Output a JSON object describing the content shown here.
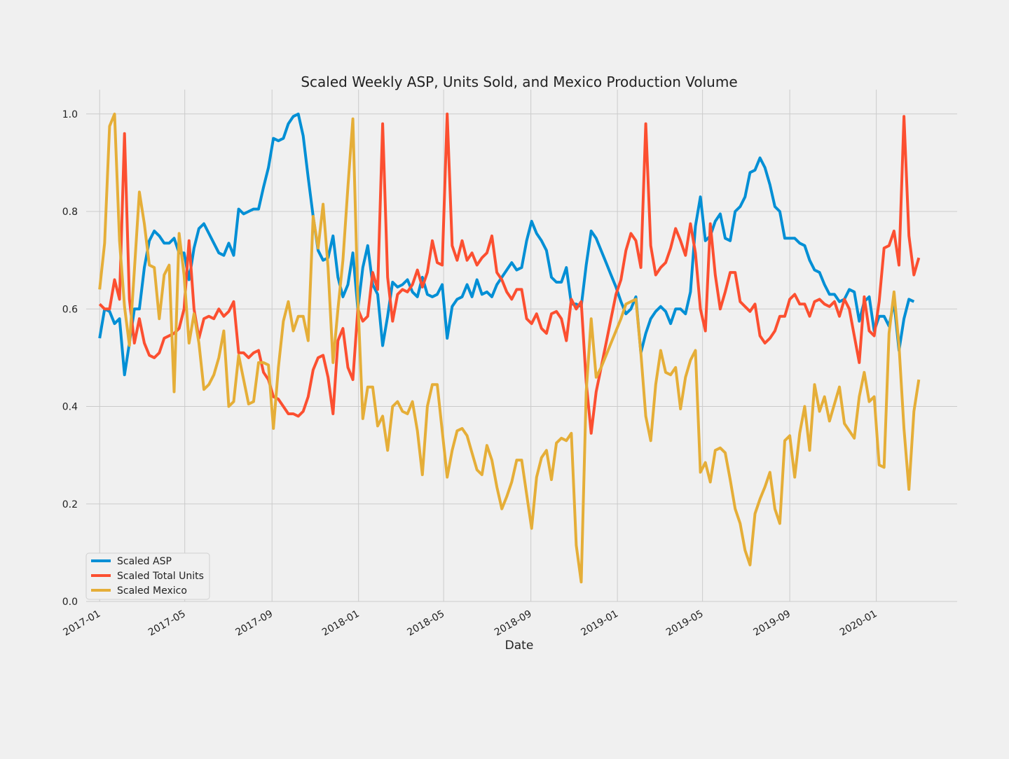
{
  "chart_data": {
    "type": "line",
    "title": "Scaled Weekly ASP, Units Sold, and Mexico Production Volume",
    "xlabel": "Date",
    "ylabel": "",
    "xlim": [
      "2016-12-13",
      "2020-04-24"
    ],
    "ylim": [
      0.0,
      1.05
    ],
    "x_ticks": [
      "2017-01",
      "2017-05",
      "2017-09",
      "2018-01",
      "2018-05",
      "2018-09",
      "2019-01",
      "2019-05",
      "2019-09",
      "2020-01"
    ],
    "y_ticks": [
      "0.0",
      "0.2",
      "0.4",
      "0.6",
      "0.8",
      "1.0"
    ],
    "grid": true,
    "legend_position": "lower left",
    "start_date": "2017-01-01",
    "interval_days": 7,
    "series": [
      {
        "name": "Scaled ASP",
        "color": "#008fd5",
        "values": [
          0.54,
          0.6,
          0.595,
          0.57,
          0.58,
          0.465,
          0.53,
          0.6,
          0.6,
          0.685,
          0.74,
          0.76,
          0.75,
          0.735,
          0.735,
          0.745,
          0.715,
          0.715,
          0.66,
          0.725,
          0.765,
          0.775,
          0.755,
          0.735,
          0.715,
          0.71,
          0.735,
          0.71,
          0.805,
          0.795,
          0.8,
          0.805,
          0.805,
          0.85,
          0.89,
          0.95,
          0.945,
          0.95,
          0.98,
          0.995,
          1.0,
          0.955,
          0.87,
          0.79,
          0.72,
          0.7,
          0.705,
          0.75,
          0.665,
          0.625,
          0.65,
          0.715,
          0.6,
          0.685,
          0.73,
          0.65,
          0.63,
          0.525,
          0.585,
          0.655,
          0.645,
          0.65,
          0.66,
          0.635,
          0.625,
          0.665,
          0.63,
          0.625,
          0.63,
          0.65,
          0.54,
          0.605,
          0.62,
          0.625,
          0.65,
          0.625,
          0.66,
          0.63,
          0.635,
          0.625,
          0.65,
          0.665,
          0.68,
          0.695,
          0.68,
          0.685,
          0.74,
          0.78,
          0.755,
          0.74,
          0.72,
          0.665,
          0.655,
          0.655,
          0.685,
          0.61,
          0.61,
          0.605,
          0.69,
          0.76,
          0.745,
          0.72,
          0.695,
          0.67,
          0.645,
          0.615,
          0.59,
          0.6,
          0.625,
          0.51,
          0.55,
          0.58,
          0.595,
          0.605,
          0.595,
          0.57,
          0.6,
          0.6,
          0.59,
          0.635,
          0.77,
          0.83,
          0.74,
          0.75,
          0.78,
          0.795,
          0.745,
          0.74,
          0.8,
          0.81,
          0.83,
          0.88,
          0.885,
          0.91,
          0.89,
          0.855,
          0.81,
          0.8,
          0.745,
          0.745,
          0.745,
          0.735,
          0.73,
          0.7,
          0.68,
          0.675,
          0.65,
          0.63,
          0.63,
          0.615,
          0.62,
          0.64,
          0.635,
          0.575,
          0.615,
          0.625,
          0.555,
          0.585,
          0.585,
          0.565,
          0.615,
          0.515,
          0.58,
          0.62,
          0.615
        ]
      },
      {
        "name": "Scaled Total Units",
        "color": "#fc4f30",
        "values": [
          0.61,
          0.6,
          0.6,
          0.66,
          0.62,
          0.96,
          0.62,
          0.53,
          0.58,
          0.53,
          0.505,
          0.5,
          0.51,
          0.54,
          0.545,
          0.55,
          0.56,
          0.6,
          0.74,
          0.6,
          0.54,
          0.58,
          0.585,
          0.58,
          0.6,
          0.585,
          0.595,
          0.615,
          0.51,
          0.51,
          0.5,
          0.51,
          0.515,
          0.47,
          0.455,
          0.42,
          0.415,
          0.4,
          0.385,
          0.385,
          0.38,
          0.39,
          0.42,
          0.475,
          0.5,
          0.505,
          0.46,
          0.385,
          0.535,
          0.56,
          0.48,
          0.455,
          0.6,
          0.575,
          0.585,
          0.675,
          0.64,
          0.98,
          0.665,
          0.575,
          0.63,
          0.64,
          0.635,
          0.65,
          0.68,
          0.645,
          0.675,
          0.74,
          0.695,
          0.69,
          1.0,
          0.73,
          0.7,
          0.74,
          0.7,
          0.715,
          0.69,
          0.705,
          0.715,
          0.75,
          0.675,
          0.66,
          0.635,
          0.62,
          0.64,
          0.64,
          0.58,
          0.57,
          0.59,
          0.56,
          0.55,
          0.59,
          0.595,
          0.58,
          0.535,
          0.62,
          0.6,
          0.615,
          0.45,
          0.345,
          0.43,
          0.48,
          0.53,
          0.58,
          0.63,
          0.66,
          0.72,
          0.755,
          0.74,
          0.685,
          0.98,
          0.73,
          0.67,
          0.685,
          0.695,
          0.725,
          0.765,
          0.74,
          0.71,
          0.775,
          0.715,
          0.6,
          0.555,
          0.775,
          0.67,
          0.6,
          0.635,
          0.675,
          0.675,
          0.615,
          0.605,
          0.595,
          0.61,
          0.545,
          0.53,
          0.54,
          0.555,
          0.585,
          0.585,
          0.62,
          0.63,
          0.61,
          0.61,
          0.585,
          0.615,
          0.62,
          0.61,
          0.605,
          0.615,
          0.585,
          0.62,
          0.6,
          0.545,
          0.49,
          0.625,
          0.555,
          0.545,
          0.615,
          0.725,
          0.73,
          0.76,
          0.69,
          0.995,
          0.75,
          0.67,
          0.705
        ]
      },
      {
        "name": "Scaled Mexico",
        "color": "#e5ae38",
        "values": [
          0.64,
          0.735,
          0.975,
          1.0,
          0.74,
          0.605,
          0.525,
          0.68,
          0.84,
          0.775,
          0.69,
          0.685,
          0.58,
          0.67,
          0.69,
          0.43,
          0.755,
          0.67,
          0.53,
          0.59,
          0.53,
          0.435,
          0.445,
          0.465,
          0.5,
          0.555,
          0.4,
          0.41,
          0.505,
          0.455,
          0.405,
          0.41,
          0.49,
          0.49,
          0.485,
          0.355,
          0.48,
          0.575,
          0.615,
          0.555,
          0.585,
          0.585,
          0.535,
          0.79,
          0.725,
          0.815,
          0.685,
          0.49,
          0.6,
          0.7,
          0.85,
          0.99,
          0.62,
          0.375,
          0.44,
          0.44,
          0.36,
          0.38,
          0.31,
          0.4,
          0.41,
          0.39,
          0.385,
          0.41,
          0.35,
          0.26,
          0.4,
          0.445,
          0.445,
          0.35,
          0.255,
          0.31,
          0.35,
          0.355,
          0.34,
          0.305,
          0.27,
          0.26,
          0.32,
          0.29,
          0.235,
          0.19,
          0.215,
          0.245,
          0.29,
          0.29,
          0.22,
          0.15,
          0.255,
          0.295,
          0.31,
          0.25,
          0.325,
          0.335,
          0.33,
          0.345,
          0.115,
          0.04,
          0.43,
          0.58,
          0.46,
          0.48,
          0.505,
          0.53,
          0.555,
          0.58,
          0.61,
          0.615,
          0.62,
          0.51,
          0.38,
          0.33,
          0.445,
          0.515,
          0.47,
          0.465,
          0.48,
          0.395,
          0.46,
          0.495,
          0.515,
          0.265,
          0.285,
          0.245,
          0.31,
          0.315,
          0.305,
          0.25,
          0.19,
          0.16,
          0.105,
          0.075,
          0.18,
          0.21,
          0.235,
          0.265,
          0.19,
          0.16,
          0.33,
          0.34,
          0.255,
          0.345,
          0.4,
          0.31,
          0.445,
          0.39,
          0.42,
          0.37,
          0.405,
          0.44,
          0.365,
          0.35,
          0.335,
          0.42,
          0.47,
          0.41,
          0.42,
          0.28,
          0.275,
          0.55,
          0.635,
          0.525,
          0.355,
          0.23,
          0.39,
          0.455
        ]
      }
    ]
  }
}
